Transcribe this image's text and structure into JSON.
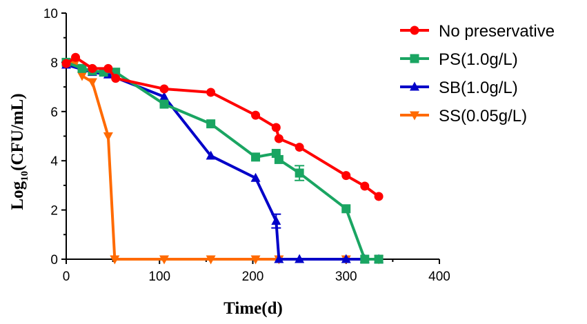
{
  "chart_data": {
    "type": "line",
    "title": "",
    "xlabel": "Time(d)",
    "ylabel": {
      "prefix": "Log",
      "subscript": "10",
      "suffix": "(CFU/mL)"
    },
    "xlim": [
      0,
      400
    ],
    "ylim": [
      0,
      10
    ],
    "xticks": [
      "0",
      "100",
      "200",
      "300",
      "400"
    ],
    "yticks": [
      "0",
      "2",
      "4",
      "6",
      "8",
      "10"
    ],
    "grid": false,
    "legend_position": "top-right",
    "series": [
      {
        "name": "No preservative",
        "color": "#ff0000",
        "marker": "circle",
        "x": [
          0,
          10,
          28,
          45,
          53,
          105,
          155,
          203,
          225,
          228,
          250,
          300,
          320,
          335
        ],
        "y": [
          7.95,
          8.2,
          7.75,
          7.75,
          7.35,
          6.92,
          6.78,
          5.85,
          5.35,
          4.9,
          4.55,
          3.4,
          2.97,
          2.55
        ],
        "errors": [
          0,
          0,
          0,
          0,
          0,
          0,
          0,
          0,
          0,
          0,
          0,
          0,
          0,
          0
        ]
      },
      {
        "name": "PS(1.0g/L)",
        "color": "#1aa562",
        "marker": "square",
        "x": [
          0,
          17,
          28,
          40,
          53,
          105,
          155,
          203,
          225,
          228,
          250,
          300,
          320,
          335
        ],
        "y": [
          8.0,
          7.75,
          7.65,
          7.6,
          7.6,
          6.3,
          5.5,
          4.15,
          4.3,
          4.05,
          3.5,
          2.05,
          0,
          0
        ],
        "errors": [
          0,
          0,
          0,
          0,
          0,
          0,
          0,
          0,
          0,
          0,
          0.3,
          0,
          0,
          0
        ]
      },
      {
        "name": "SB(1.0g/L)",
        "color": "#0000c8",
        "marker": "triangle-up",
        "x": [
          0,
          28,
          45,
          105,
          155,
          203,
          225,
          228,
          250,
          300,
          320,
          335
        ],
        "y": [
          7.9,
          7.6,
          7.5,
          6.6,
          4.2,
          3.3,
          1.55,
          0,
          0,
          0,
          0,
          0
        ],
        "errors": [
          0,
          0,
          0,
          0,
          0,
          0,
          0.28,
          0,
          0,
          0,
          0,
          0
        ]
      },
      {
        "name": "SS(0.05g/L)",
        "color": "#ff6a00",
        "marker": "triangle-down",
        "x": [
          0,
          10,
          17,
          28,
          45,
          52,
          105,
          155,
          203,
          228,
          300,
          335
        ],
        "y": [
          8.0,
          8.0,
          7.45,
          7.2,
          5.0,
          0,
          0,
          0,
          0,
          0,
          0,
          0
        ],
        "errors": [
          0,
          0,
          0,
          0,
          0,
          0,
          0,
          0,
          0,
          0,
          0,
          0
        ]
      }
    ]
  }
}
